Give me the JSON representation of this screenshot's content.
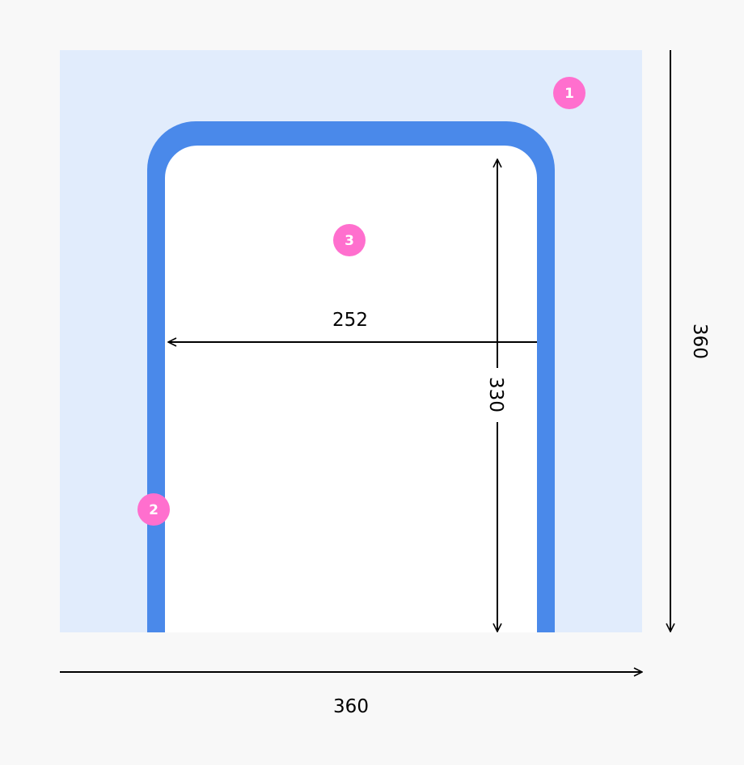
{
  "colors": {
    "background": "#f8f8f8",
    "region": "#e1ecfc",
    "border": "#4a89ea",
    "content": "#ffffff",
    "badge": "#ff6fce",
    "dimension": "#000000"
  },
  "badges": [
    "1",
    "2",
    "3"
  ],
  "dimensions": {
    "outer_width": "360",
    "outer_height": "360",
    "inner_width": "252",
    "inner_height": "330"
  }
}
